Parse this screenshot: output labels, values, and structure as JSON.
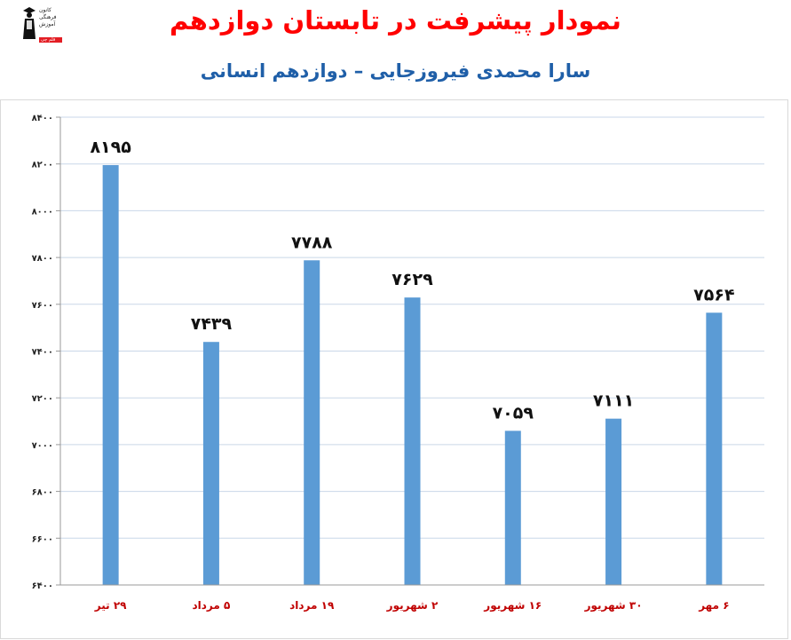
{
  "header": {
    "title": "نمودار پیشرفت در تابستان دوازدهم",
    "subtitle": "سارا محمدی فیروزجایی – دوازدهم انسانی"
  },
  "logo": {
    "lines": [
      "کانون",
      "فرهنگی",
      "آموزش",
      "قلم چی"
    ]
  },
  "chart_data": {
    "type": "bar",
    "categories": [
      "۲۹ تیر",
      "۵ مرداد",
      "۱۹ مرداد",
      "۲ شهریور",
      "۱۶ شهریور",
      "۳۰ شهریور",
      "۶ مهر"
    ],
    "values": [
      8195,
      7439,
      7788,
      7629,
      7059,
      7111,
      7564
    ],
    "value_labels": [
      "۸۱۹۵",
      "۷۴۳۹",
      "۷۷۸۸",
      "۷۶۲۹",
      "۷۰۵۹",
      "۷۱۱۱",
      "۷۵۶۴"
    ],
    "ylim": [
      6400,
      8400
    ],
    "yticks": [
      6400,
      6600,
      6800,
      7000,
      7200,
      7400,
      7600,
      7800,
      8000,
      8200,
      8400
    ],
    "ytick_labels": [
      "۶۴۰۰",
      "۶۶۰۰",
      "۶۸۰۰",
      "۷۰۰۰",
      "۷۲۰۰",
      "۷۴۰۰",
      "۷۶۰۰",
      "۷۸۰۰",
      "۸۰۰۰",
      "۸۲۰۰",
      "۸۴۰۰"
    ],
    "grid": true,
    "legend": "none",
    "colors": {
      "bar": "#5b9bd5",
      "grid": "#c9d7e8",
      "axis_text": "#222222",
      "category_text": "#c00000"
    }
  }
}
